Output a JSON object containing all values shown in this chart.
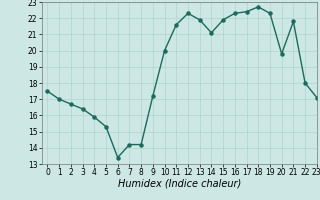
{
  "x": [
    0,
    1,
    2,
    3,
    4,
    5,
    6,
    7,
    8,
    9,
    10,
    11,
    12,
    13,
    14,
    15,
    16,
    17,
    18,
    19,
    20,
    21,
    22,
    23
  ],
  "y": [
    17.5,
    17.0,
    16.7,
    16.4,
    15.9,
    15.3,
    13.4,
    14.2,
    14.2,
    17.2,
    20.0,
    21.6,
    22.3,
    21.9,
    21.1,
    21.9,
    22.3,
    22.4,
    22.7,
    22.3,
    19.8,
    21.8,
    18.0,
    17.1
  ],
  "line_color": "#1a6b5a",
  "marker": "o",
  "marker_size": 2.2,
  "line_width": 1.0,
  "bg_color": "#cde8e4",
  "grid_color": "#b0d4cf",
  "xlabel": "Humidex (Indice chaleur)",
  "ylim": [
    13,
    23
  ],
  "xlim": [
    -0.5,
    23
  ],
  "yticks": [
    13,
    14,
    15,
    16,
    17,
    18,
    19,
    20,
    21,
    22,
    23
  ],
  "xticks": [
    0,
    1,
    2,
    3,
    4,
    5,
    6,
    7,
    8,
    9,
    10,
    11,
    12,
    13,
    14,
    15,
    16,
    17,
    18,
    19,
    20,
    21,
    22,
    23
  ],
  "tick_fontsize": 5.5,
  "xlabel_fontsize": 7.0
}
